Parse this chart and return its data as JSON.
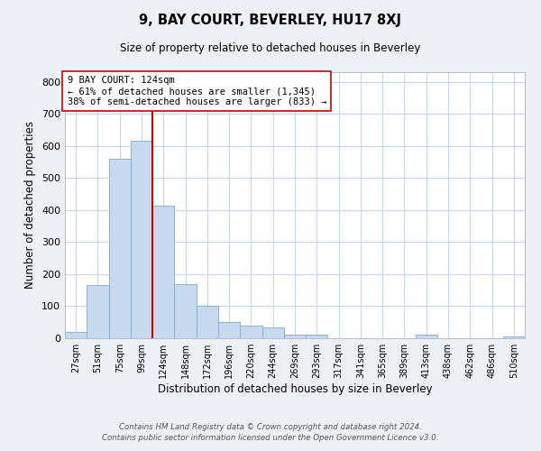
{
  "title": "9, BAY COURT, BEVERLEY, HU17 8XJ",
  "subtitle": "Size of property relative to detached houses in Beverley",
  "xlabel": "Distribution of detached houses by size in Beverley",
  "ylabel": "Number of detached properties",
  "bar_labels": [
    "27sqm",
    "51sqm",
    "75sqm",
    "99sqm",
    "124sqm",
    "148sqm",
    "172sqm",
    "196sqm",
    "220sqm",
    "244sqm",
    "269sqm",
    "293sqm",
    "317sqm",
    "341sqm",
    "365sqm",
    "389sqm",
    "413sqm",
    "438sqm",
    "462sqm",
    "486sqm",
    "510sqm"
  ],
  "bar_heights": [
    20,
    165,
    560,
    615,
    415,
    170,
    100,
    50,
    40,
    33,
    12,
    12,
    0,
    0,
    0,
    0,
    10,
    0,
    0,
    0,
    5
  ],
  "bar_color": "#c8d8ee",
  "bar_edge_color": "#7aaad0",
  "vline_color": "#cc0000",
  "annotation_title": "9 BAY COURT: 124sqm",
  "annotation_line1": "← 61% of detached houses are smaller (1,345)",
  "annotation_line2": "38% of semi-detached houses are larger (833) →",
  "annotation_box_color": "#ffffff",
  "annotation_box_edge": "#cc0000",
  "ylim": [
    0,
    830
  ],
  "yticks": [
    0,
    100,
    200,
    300,
    400,
    500,
    600,
    700,
    800
  ],
  "footer_line1": "Contains HM Land Registry data © Crown copyright and database right 2024.",
  "footer_line2": "Contains public sector information licensed under the Open Government Licence v3.0.",
  "bg_color": "#edf1f7",
  "plot_bg_color": "#ffffff",
  "grid_color": "#c8d4e8"
}
